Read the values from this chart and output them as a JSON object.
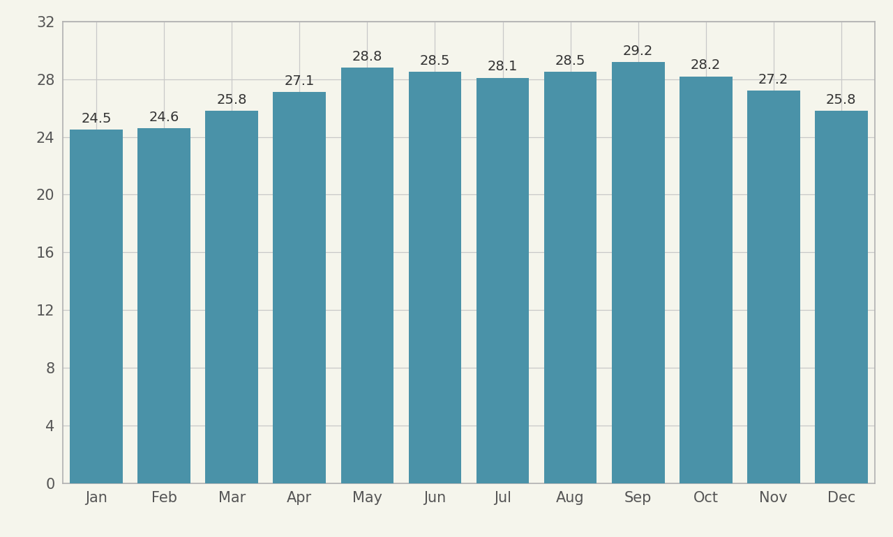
{
  "months": [
    "Jan",
    "Feb",
    "Mar",
    "Apr",
    "May",
    "Jun",
    "Jul",
    "Aug",
    "Sep",
    "Oct",
    "Nov",
    "Dec"
  ],
  "values": [
    24.5,
    24.6,
    25.8,
    27.1,
    28.8,
    28.5,
    28.1,
    28.5,
    29.2,
    28.2,
    27.2,
    25.8
  ],
  "bar_color": "#4a92a8",
  "background_color": "#f5f5ec",
  "plot_bg_color": "#f5f5ec",
  "grid_color": "#c8c8c8",
  "border_color": "#b0b0b0",
  "ylim": [
    0,
    32
  ],
  "yticks": [
    0,
    4,
    8,
    12,
    16,
    20,
    24,
    28,
    32
  ],
  "bar_width": 0.78,
  "label_fontsize": 15,
  "tick_fontsize": 15,
  "value_fontsize": 14
}
